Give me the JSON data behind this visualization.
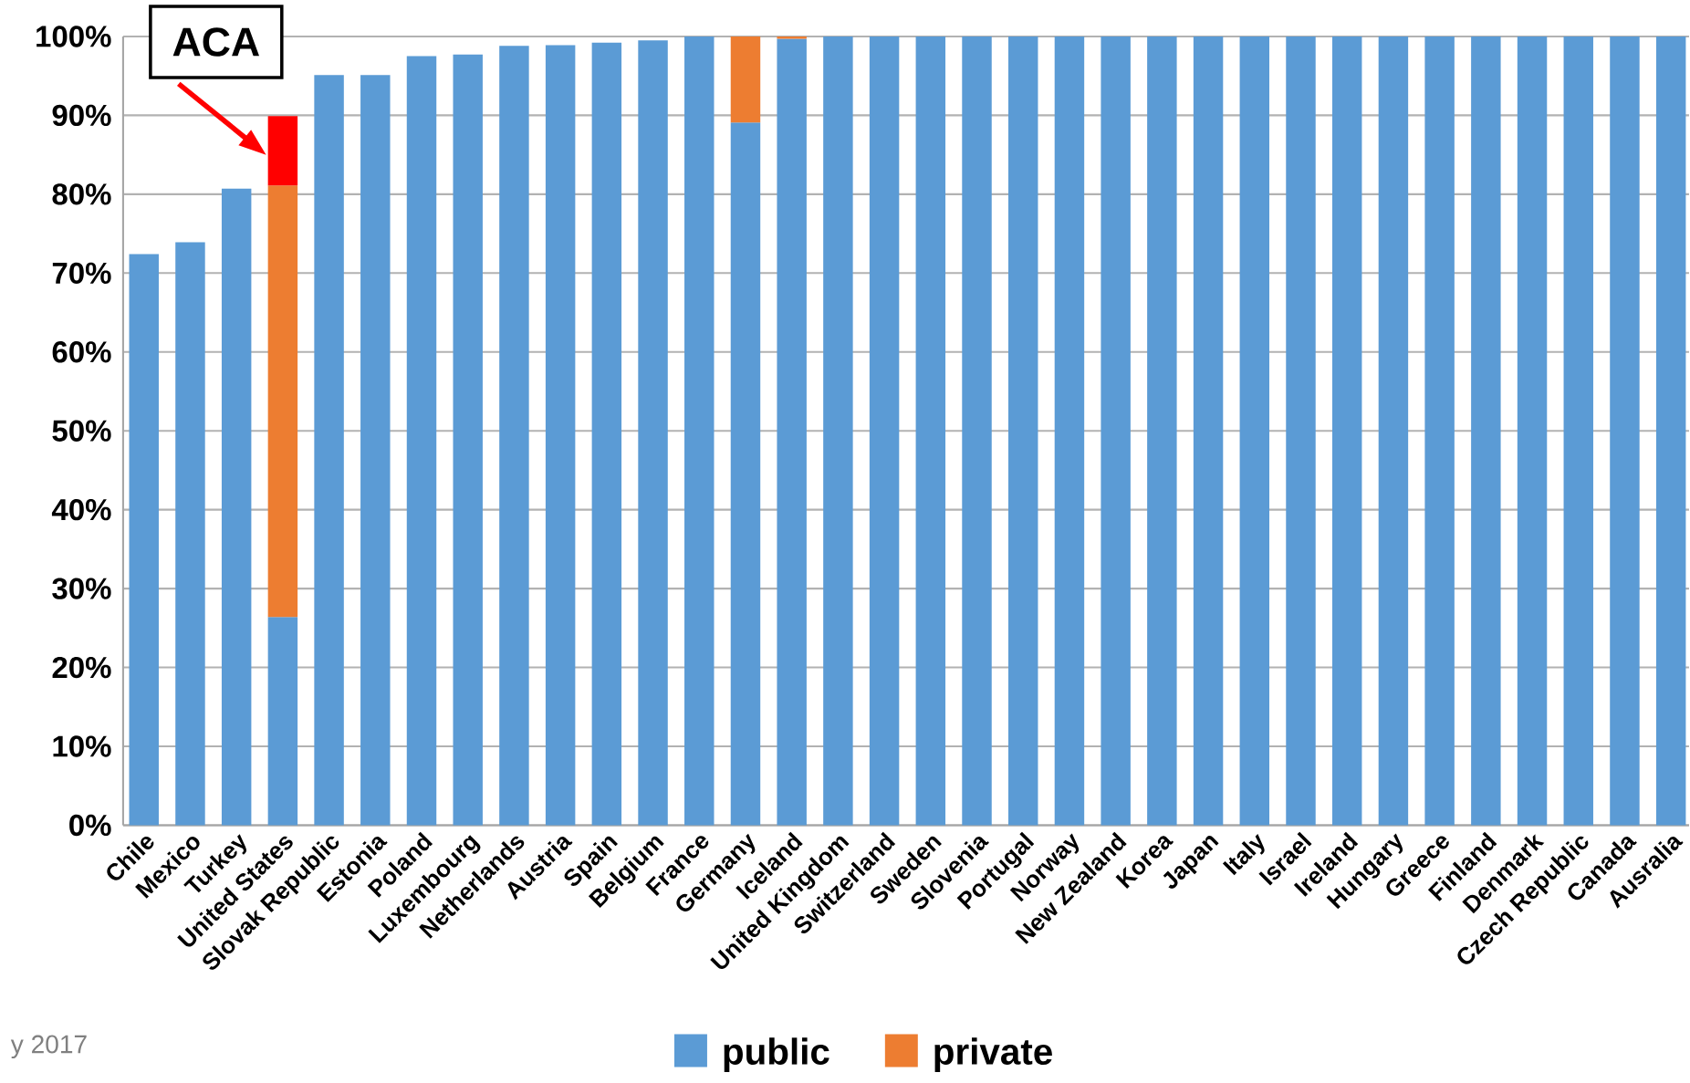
{
  "chart_data": {
    "type": "bar",
    "stacked": true,
    "categories": [
      "Chile",
      "Mexico",
      "Turkey",
      "United States",
      "Slovak Republic",
      "Estonia",
      "Poland",
      "Luxembourg",
      "Netherlands",
      "Austria",
      "Spain",
      "Belgium",
      "France",
      "Germany",
      "Iceland",
      "United Kingdom",
      "Switzerland",
      "Sweden",
      "Slovenia",
      "Portugal",
      "Norway",
      "New Zealand",
      "Korea",
      "Japan",
      "Italy",
      "Israel",
      "Ireland",
      "Hungary",
      "Greece",
      "Finland",
      "Denmark",
      "Czech Republic",
      "Canada",
      "Ausralia"
    ],
    "series": [
      {
        "name": "public",
        "color": "#5b9bd5",
        "values": [
          72.4,
          73.9,
          80.7,
          26.4,
          95.1,
          95.1,
          97.5,
          97.7,
          98.8,
          98.9,
          99.2,
          99.5,
          100,
          89.1,
          99.7,
          100,
          100,
          100,
          100,
          100,
          100,
          100,
          100,
          100,
          100,
          100,
          100,
          100,
          100,
          100,
          100,
          100,
          100,
          100
        ]
      },
      {
        "name": "private",
        "color": "#ed7d31",
        "values": [
          null,
          null,
          null,
          54.7,
          null,
          null,
          null,
          null,
          null,
          null,
          null,
          null,
          null,
          10.9,
          0.3,
          null,
          null,
          null,
          null,
          null,
          null,
          null,
          null,
          null,
          null,
          null,
          null,
          null,
          null,
          null,
          null,
          null,
          null,
          null
        ]
      },
      {
        "color": "#ff0000",
        "values": [
          null,
          null,
          null,
          8.8,
          null,
          null,
          null,
          null,
          null,
          null,
          null,
          null,
          null,
          null,
          null,
          null,
          null,
          null,
          null,
          null,
          null,
          null,
          null,
          null,
          null,
          null,
          null,
          null,
          null,
          null,
          null,
          null,
          null,
          null
        ]
      }
    ],
    "ylim": [
      0,
      100
    ],
    "yticks": [
      {
        "value": 0,
        "label": "0%"
      },
      {
        "value": 10,
        "label": "10%"
      },
      {
        "value": 20,
        "label": "20%"
      },
      {
        "value": 30,
        "label": "30%"
      },
      {
        "value": 40,
        "label": "40%"
      },
      {
        "value": 50,
        "label": "50%"
      },
      {
        "value": 60,
        "label": "60%"
      },
      {
        "value": 70,
        "label": "70%"
      },
      {
        "value": 80,
        "label": "80%"
      },
      {
        "value": 90,
        "label": "90%"
      },
      {
        "value": 100,
        "label": "100%"
      }
    ],
    "grid": "y",
    "legend": "bottom",
    "annotations": [
      "ACA",
      "y 2017"
    ]
  }
}
